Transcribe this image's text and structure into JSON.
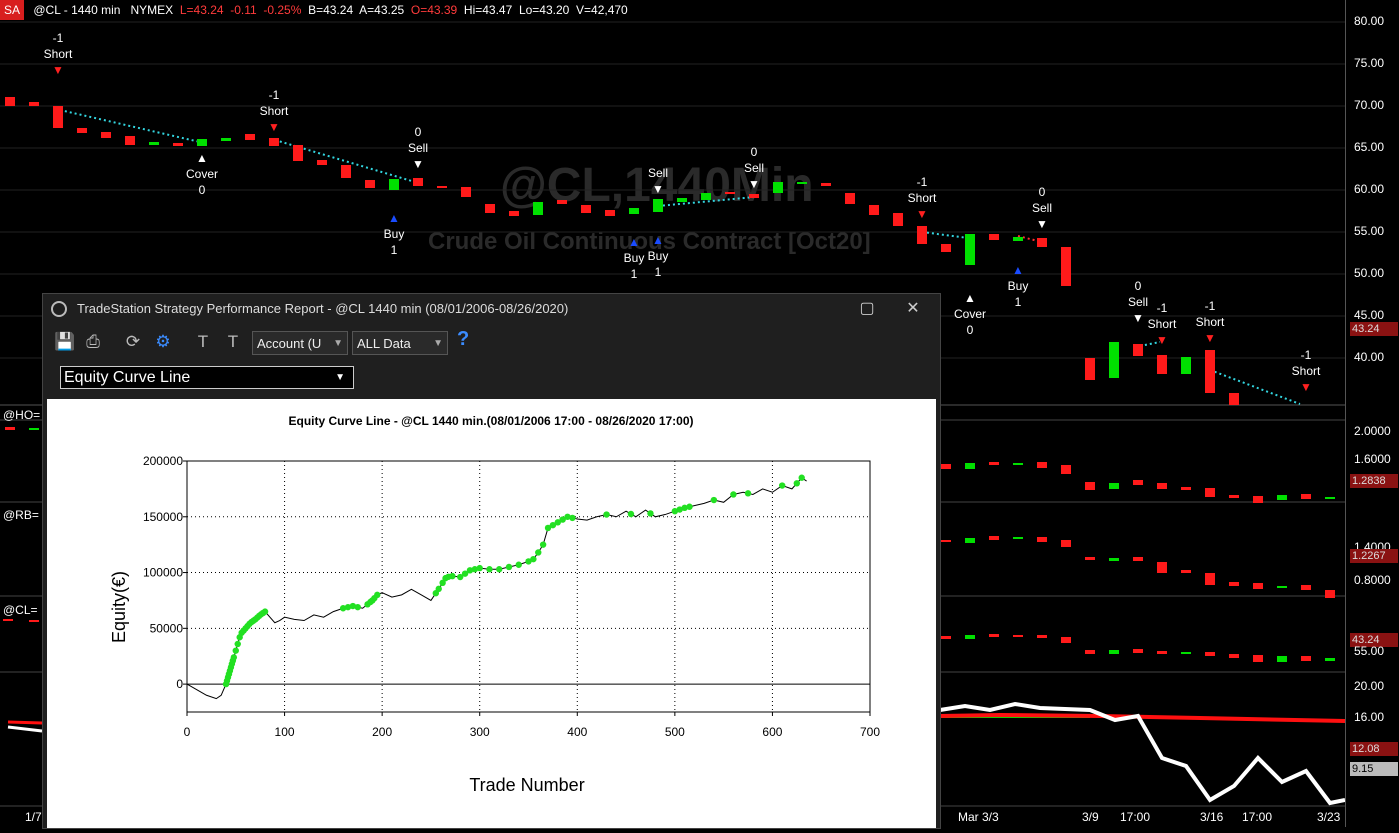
{
  "topbar": {
    "badge": "SA",
    "symbol": "@CL - 1440 min",
    "exchange": "NYMEX",
    "last": "L=43.24",
    "chg": "-0.11",
    "pct": "-0.25%",
    "bid": "B=43.24",
    "ask": "A=43.25",
    "open": "O=43.39",
    "high": "Hi=43.47",
    "low": "Lo=43.20",
    "vol": "V=42,470"
  },
  "watermark": {
    "title": "@CL,1440Min",
    "subtitle": "Crude Oil Continuous Contract [Oct20]"
  },
  "price_axis": {
    "ticks": [
      "80.00",
      "75.00",
      "70.00",
      "65.00",
      "60.00",
      "55.00",
      "50.00",
      "45.00",
      "40.00"
    ],
    "last_tag": "43.24",
    "ho_ticks": [
      "2.0000",
      "1.6000",
      "1.2000"
    ],
    "ho_tag": "1.2838",
    "rb_ticks": [
      "1.4000",
      "0.8000"
    ],
    "rb_tag": "1.2267",
    "cl_ticks": [
      "55.00"
    ],
    "cl_tag": "43.24",
    "ind_ticks": [
      "20.00",
      "16.00",
      "12.00"
    ],
    "ind_tag1": "12.08",
    "ind_tag2": "9.15"
  },
  "colors": {
    "up": "#00e000",
    "down": "#ff1a1a",
    "trend": "#33d6e0",
    "ma_red": "#ff1010",
    "ma_white": "#ffffff",
    "ma_green": "#00e000"
  },
  "signals": [
    {
      "id": "s1",
      "lines": [
        "-1",
        "Short"
      ],
      "arrow": "down-red"
    },
    {
      "id": "s2",
      "lines": [
        "Cover",
        "0"
      ],
      "arrow": "up-white"
    },
    {
      "id": "s3",
      "lines": [
        "-1",
        "Short"
      ],
      "arrow": "down-red"
    },
    {
      "id": "s4",
      "lines": [
        "0",
        "Sell"
      ],
      "arrow": "down-white"
    },
    {
      "id": "s5",
      "lines": [
        "Buy",
        "1"
      ],
      "arrow": "up-blue"
    },
    {
      "id": "s6",
      "lines": [
        "Sell"
      ],
      "arrow": "down-white"
    },
    {
      "id": "s7",
      "lines": [
        "Buy",
        "1"
      ],
      "arrow": "up-blue"
    },
    {
      "id": "s8",
      "lines": [
        "Buy",
        "1"
      ],
      "arrow": "up-blue"
    },
    {
      "id": "s9",
      "lines": [
        "0",
        "Sell"
      ],
      "arrow": "down-white"
    },
    {
      "id": "s10",
      "lines": [
        "-1",
        "Short"
      ],
      "arrow": "down-red"
    },
    {
      "id": "s11",
      "lines": [
        "Cover",
        "0"
      ],
      "arrow": "up-white"
    },
    {
      "id": "s12",
      "lines": [
        "0",
        "Sell"
      ],
      "arrow": "down-white"
    },
    {
      "id": "s13",
      "lines": [
        "Buy",
        "1"
      ],
      "arrow": "up-blue"
    },
    {
      "id": "s14",
      "lines": [
        "0",
        "Sell"
      ],
      "arrow": "down-white"
    },
    {
      "id": "s15",
      "lines": [
        "-1",
        "Short"
      ],
      "arrow": "down-red"
    },
    {
      "id": "s16",
      "lines": [
        "-1",
        "Short"
      ],
      "arrow": "down-red"
    },
    {
      "id": "s17",
      "lines": [
        "-1",
        "Short"
      ],
      "arrow": "down-red"
    }
  ],
  "symbols": [
    "@HO=",
    "@RB=",
    "@CL="
  ],
  "dates": [
    "1/7",
    "Mar 3/3",
    "3/9",
    "17:00",
    "3/16",
    "17:00",
    "3/23"
  ],
  "report": {
    "title": "TradeStation Strategy Performance Report - @CL 1440 min (08/01/2006-08/26/2020)",
    "account_select": "Account (U",
    "data_select": "ALL Data",
    "help": "?",
    "view_select": "Equity Curve Line",
    "icons": [
      "save-icon",
      "print-icon",
      "refresh-icon",
      "settings-icon",
      "text-format-icon",
      "text-format-icon"
    ]
  },
  "chart_data": {
    "type": "line",
    "title": "Equity Curve Line - @CL 1440 min.(08/01/2006 17:00 - 08/26/2020 17:00)",
    "xlabel": "Trade Number",
    "ylabel": "Equity(€)",
    "xlim": [
      0,
      700
    ],
    "ylim": [
      -25000,
      200000
    ],
    "xticks": [
      0,
      100,
      200,
      300,
      400,
      500,
      600,
      700
    ],
    "yticks": [
      0,
      50000,
      100000,
      150000,
      200000
    ],
    "grid": true,
    "series": [
      {
        "x": [
          0,
          10,
          20,
          30,
          35,
          40,
          45,
          50,
          55,
          60,
          65,
          70,
          75,
          80,
          85,
          90,
          95,
          100,
          110,
          120,
          130,
          140,
          150,
          160,
          170,
          180,
          190,
          195,
          200,
          210,
          220,
          230,
          240,
          250,
          260,
          265,
          270,
          280,
          290,
          300,
          310,
          320,
          330,
          340,
          350,
          355,
          360,
          365,
          370,
          380,
          390,
          400,
          410,
          420,
          430,
          440,
          450,
          460,
          470,
          480,
          490,
          500,
          510,
          520,
          530,
          540,
          550,
          560,
          570,
          580,
          590,
          600,
          610,
          620,
          630,
          635
        ],
        "y": [
          0,
          -5000,
          -10000,
          -13000,
          -10000,
          0,
          15000,
          30000,
          45000,
          50000,
          55000,
          58000,
          62000,
          65000,
          60000,
          55000,
          57000,
          60000,
          58000,
          57000,
          62000,
          60000,
          65000,
          68000,
          70000,
          68000,
          75000,
          80000,
          82000,
          78000,
          80000,
          85000,
          80000,
          75000,
          88000,
          95000,
          97000,
          96000,
          102000,
          104000,
          103000,
          103000,
          105000,
          107000,
          110000,
          112000,
          118000,
          125000,
          140000,
          145000,
          150000,
          148000,
          147000,
          150000,
          152000,
          150000,
          155000,
          150000,
          156000,
          150000,
          152000,
          155000,
          158000,
          160000,
          162000,
          165000,
          163000,
          170000,
          172000,
          170000,
          175000,
          172000,
          178000,
          175000,
          185000,
          182000
        ]
      }
    ],
    "highlight_x": [
      40,
      41,
      42,
      43,
      44,
      45,
      46,
      47,
      48,
      50,
      52,
      54,
      56,
      58,
      60,
      62,
      64,
      66,
      68,
      70,
      72,
      74,
      76,
      78,
      80,
      160,
      165,
      170,
      175,
      185,
      188,
      190,
      192,
      195,
      255,
      258,
      262,
      265,
      268,
      272,
      280,
      285,
      290,
      295,
      300,
      310,
      320,
      330,
      340,
      350,
      355,
      360,
      365,
      370,
      375,
      380,
      385,
      390,
      395,
      430,
      455,
      475,
      500,
      505,
      510,
      515,
      540,
      560,
      575,
      610,
      625,
      630
    ]
  }
}
